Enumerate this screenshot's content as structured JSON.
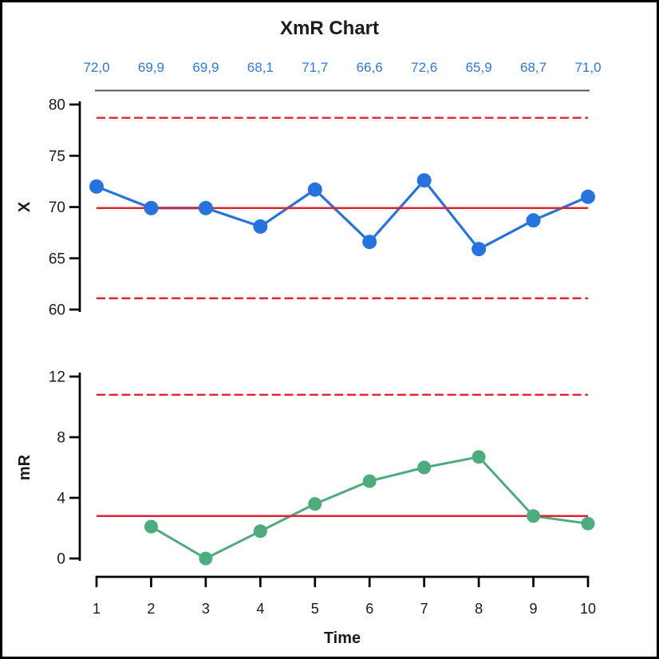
{
  "title": "XmR Chart",
  "xlabel": "Time",
  "xticks": [
    "1",
    "2",
    "3",
    "4",
    "5",
    "6",
    "7",
    "8",
    "9",
    "10"
  ],
  "top_value_labels": [
    "72,0",
    "69,9",
    "69,9",
    "68,1",
    "71,7",
    "66,6",
    "72,6",
    "65,9",
    "68,7",
    "71,0"
  ],
  "colors": {
    "series_x": "#2673dd",
    "value_labels": "#2b79e1",
    "series_mr": "#4dac7d",
    "control": "#e0232f",
    "axis": "#000000",
    "text": "#1a1a1a",
    "top_rule": "#555555"
  },
  "chart_data": [
    {
      "type": "line",
      "id": "x-chart",
      "title": "XmR Chart",
      "ylabel": "X",
      "x": [
        1,
        2,
        3,
        4,
        5,
        6,
        7,
        8,
        9,
        10
      ],
      "values": [
        72.0,
        69.9,
        69.9,
        68.1,
        71.7,
        66.6,
        72.6,
        65.9,
        68.7,
        71.0
      ],
      "center_line": 69.9,
      "ucl": 78.7,
      "lcl": 61.1,
      "ylim": [
        60,
        80
      ],
      "yticks": [
        60,
        65,
        70,
        75,
        80
      ],
      "grid": false,
      "legend": false
    },
    {
      "type": "line",
      "id": "mr-chart",
      "ylabel": "mR",
      "x": [
        2,
        3,
        4,
        5,
        6,
        7,
        8,
        9,
        10
      ],
      "values": [
        2.1,
        0.0,
        1.8,
        3.6,
        5.1,
        6.0,
        6.7,
        2.8,
        2.3
      ],
      "center_line": 2.8,
      "ucl": 10.8,
      "lcl": null,
      "ylim": [
        0,
        12
      ],
      "yticks": [
        0,
        4,
        8,
        12
      ],
      "grid": false,
      "legend": false
    }
  ]
}
